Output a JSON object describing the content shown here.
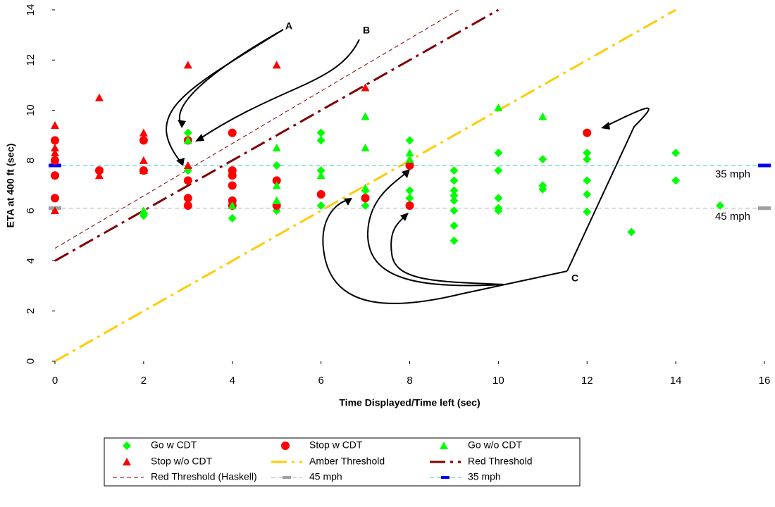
{
  "chart_data": {
    "type": "scatter",
    "x_label": "Time Displayed/Time left (sec)",
    "y_label": "ETA at 400 ft (sec)",
    "xlim": [
      0,
      16
    ],
    "xticks": [
      0,
      2,
      4,
      6,
      8,
      10,
      12,
      14,
      16
    ],
    "ylim": [
      0,
      14
    ],
    "yticks": [
      0,
      2,
      4,
      6,
      8,
      10,
      12,
      14
    ],
    "grid": false,
    "legend": "bottom",
    "annotations": [
      "A",
      "B",
      "C",
      "35 mph",
      "45 mph"
    ],
    "series": [
      {
        "name": "Go w CDT",
        "color": "#00ff00",
        "marker": "diamond",
        "x": [
          2,
          2,
          3,
          3,
          4,
          4,
          5,
          5,
          5,
          6,
          6,
          6,
          6,
          7,
          7,
          8,
          8,
          8,
          9,
          9,
          9,
          9,
          9,
          9,
          9,
          9,
          10,
          10,
          10,
          10,
          10,
          11,
          11,
          11,
          12,
          12,
          12,
          12,
          12,
          13,
          14,
          14,
          15
        ],
        "values": [
          5.9,
          5.8,
          9.1,
          7.6,
          5.7,
          6.2,
          7.8,
          6.0,
          6.3,
          9.1,
          8.8,
          7.6,
          6.2,
          6.8,
          6.2,
          8.8,
          6.8,
          6.5,
          7.6,
          7.2,
          6.8,
          6.6,
          6.4,
          6.0,
          5.4,
          4.8,
          8.3,
          7.6,
          6.5,
          6.1,
          6.0,
          8.05,
          7.0,
          6.85,
          8.3,
          8.05,
          7.2,
          6.65,
          5.95,
          5.15,
          8.3,
          7.2,
          6.2
        ]
      },
      {
        "name": "Stop w CDT",
        "color": "#ff0000",
        "marker": "circle",
        "x": [
          0,
          0,
          0,
          0,
          1,
          2,
          2,
          3,
          3,
          3,
          3,
          4,
          4,
          4,
          4,
          4,
          4,
          5,
          5,
          6,
          7,
          8,
          8,
          12
        ],
        "values": [
          8.8,
          8.0,
          7.4,
          6.5,
          7.6,
          8.8,
          7.6,
          8.8,
          7.2,
          6.5,
          6.2,
          9.1,
          7.6,
          7.4,
          7.0,
          6.4,
          6.2,
          7.2,
          6.2,
          6.65,
          6.5,
          7.8,
          6.2,
          9.1
        ]
      },
      {
        "name": "Go w/o CDT",
        "color": "#00ff00",
        "marker": "triangle",
        "x": [
          2,
          3,
          4,
          5,
          5,
          5,
          6,
          7,
          7,
          7,
          8,
          8,
          10,
          11
        ],
        "values": [
          6.0,
          8.8,
          6.2,
          8.5,
          7.0,
          6.4,
          7.4,
          9.75,
          8.5,
          6.9,
          8.3,
          8.05,
          10.1,
          9.75
        ]
      },
      {
        "name": "Stop w/o CDT",
        "color": "#ff0000",
        "marker": "triangle",
        "x": [
          0,
          0,
          0,
          0,
          0,
          1,
          1,
          2,
          2,
          2,
          3,
          3,
          5,
          7
        ],
        "values": [
          9.4,
          8.5,
          8.3,
          8.0,
          6.0,
          10.5,
          7.4,
          9.1,
          8.0,
          7.6,
          11.8,
          7.8,
          11.8,
          10.9
        ]
      },
      {
        "name": "Amber Threshold",
        "color": "#ffcc00",
        "line": "dashdot",
        "width": 3,
        "x": [
          0,
          14
        ],
        "values": [
          0,
          14
        ]
      },
      {
        "name": "Red Threshold",
        "color": "#800000",
        "line": "dashdot",
        "width": 3,
        "x": [
          0,
          10
        ],
        "values": [
          4,
          14
        ]
      },
      {
        "name": "Red Threshold (Haskell)",
        "color": "#800000",
        "line": "dash",
        "width": 1,
        "x": [
          0,
          9.1
        ],
        "values": [
          4.5,
          14
        ]
      },
      {
        "name": "45 mph",
        "color": "#b0b0b0",
        "marker_color": "#a0a0a0",
        "line": "dash",
        "width": 1,
        "x": [
          0,
          16
        ],
        "values": [
          6.1,
          6.1
        ]
      },
      {
        "name": "35 mph",
        "color": "#33cccc",
        "marker_color": "#0000ff",
        "line": "dash",
        "width": 1,
        "x": [
          0,
          16
        ],
        "values": [
          7.8,
          7.8
        ]
      }
    ]
  }
}
